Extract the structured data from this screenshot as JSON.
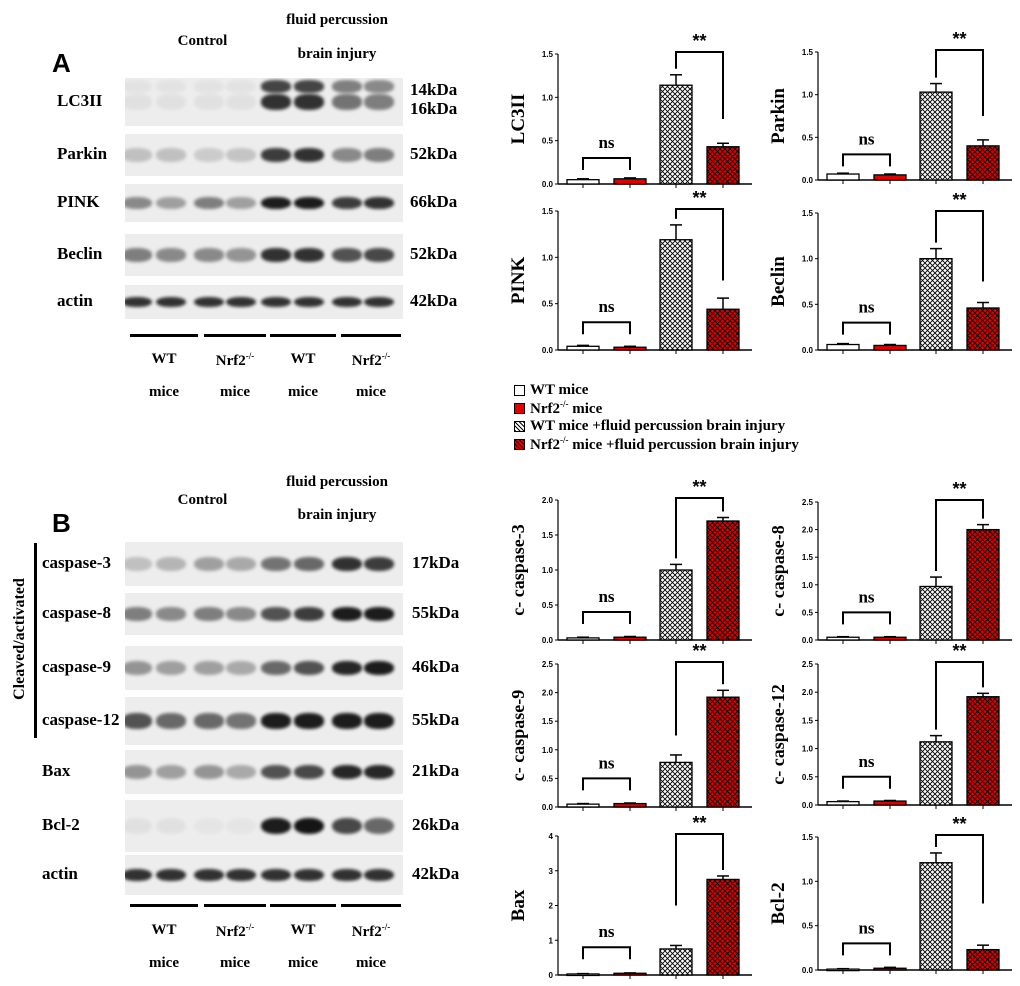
{
  "panel_a": {
    "letter": "A",
    "header_control": "Control",
    "header_fpbi_1": "fluid percussion",
    "header_fpbi_2": "brain injury",
    "rows": [
      {
        "label": "LC3II",
        "kda": "14kDa",
        "kda2": "16kDa",
        "intensity": [
          0.05,
          0.05,
          0.05,
          0.05,
          0.85,
          0.85,
          0.55,
          0.5
        ]
      },
      {
        "label": "Parkin",
        "kda": "52kDa",
        "intensity": [
          0.2,
          0.2,
          0.15,
          0.18,
          0.8,
          0.85,
          0.45,
          0.5
        ]
      },
      {
        "label": "PINK",
        "kda": "66kDa",
        "intensity": [
          0.45,
          0.35,
          0.5,
          0.35,
          0.95,
          0.95,
          0.8,
          0.85
        ]
      },
      {
        "label": "Beclin",
        "kda": "52kDa",
        "intensity": [
          0.5,
          0.45,
          0.45,
          0.4,
          0.85,
          0.85,
          0.7,
          0.75
        ]
      },
      {
        "label": "actin",
        "kda": "42kDa",
        "intensity": [
          0.85,
          0.85,
          0.85,
          0.85,
          0.85,
          0.85,
          0.85,
          0.85
        ]
      }
    ],
    "groups": [
      {
        "line1": "WT",
        "sup": "",
        "line2": "mice"
      },
      {
        "line1": "Nrf2",
        "sup": "-/-",
        "line2": "mice"
      },
      {
        "line1": "WT",
        "sup": "",
        "line2": "mice"
      },
      {
        "line1": "Nrf2",
        "sup": "-/-",
        "line2": "mice"
      }
    ]
  },
  "panel_b": {
    "letter": "B",
    "header_control": "Control",
    "header_fpbi_1": "fluid percussion",
    "header_fpbi_2": "brain injury",
    "bracket_label": "Cleaved/activated",
    "rows": [
      {
        "label": "caspase-3",
        "kda": "17kDa",
        "intensity": [
          0.2,
          0.25,
          0.35,
          0.3,
          0.55,
          0.6,
          0.85,
          0.8
        ]
      },
      {
        "label": "caspase-8",
        "kda": "55kDa",
        "intensity": [
          0.5,
          0.45,
          0.5,
          0.45,
          0.7,
          0.8,
          0.95,
          0.95
        ]
      },
      {
        "label": "caspase-9",
        "kda": "46kDa",
        "intensity": [
          0.4,
          0.35,
          0.35,
          0.3,
          0.6,
          0.7,
          0.9,
          0.95
        ]
      },
      {
        "label": "caspase-12",
        "kda": "55kDa",
        "intensity": [
          0.7,
          0.6,
          0.6,
          0.55,
          0.95,
          0.95,
          0.95,
          0.95
        ]
      },
      {
        "label": "Bax",
        "kda": "21kDa",
        "intensity": [
          0.4,
          0.35,
          0.4,
          0.3,
          0.7,
          0.75,
          0.9,
          0.9
        ]
      },
      {
        "label": "Bcl-2",
        "kda": "26kDa",
        "intensity": [
          0.05,
          0.05,
          0.03,
          0.03,
          0.95,
          0.98,
          0.75,
          0.6
        ]
      },
      {
        "label": "actin",
        "kda": "42kDa",
        "intensity": [
          0.85,
          0.85,
          0.85,
          0.85,
          0.85,
          0.85,
          0.85,
          0.85
        ]
      }
    ],
    "groups": [
      {
        "line1": "WT",
        "sup": "",
        "line2": "mice"
      },
      {
        "line1": "Nrf2",
        "sup": "-/-",
        "line2": "mice"
      },
      {
        "line1": "WT",
        "sup": "",
        "line2": "mice"
      },
      {
        "line1": "Nrf2",
        "sup": "-/-",
        "line2": "mice"
      }
    ]
  },
  "legend": [
    {
      "pre": "WT mice",
      "sup": "",
      "post": "",
      "style": "white"
    },
    {
      "pre": "Nrf2",
      "sup": "-/-",
      "post": " mice",
      "style": "red"
    },
    {
      "pre": "WT mice  +fluid percussion brain injury",
      "sup": "",
      "post": "",
      "style": "hatch"
    },
    {
      "pre": "Nrf2",
      "sup": "-/-",
      "post": " mice +fluid percussion brain injury",
      "style": "redhatch"
    }
  ],
  "colors": {
    "red": "#e00000",
    "black": "#000000"
  },
  "chart_data": [
    {
      "type": "bar",
      "ylabel": "LC3II",
      "ylim": [
        0,
        1.5
      ],
      "yticks": [
        "0.0",
        "0.5",
        "1.0",
        "1.5"
      ],
      "values": [
        0.05,
        0.06,
        1.14,
        0.43
      ],
      "errors": [
        0.01,
        0.01,
        0.12,
        0.04
      ],
      "sig_left": "ns",
      "sig_right": "**"
    },
    {
      "type": "bar",
      "ylabel": "Parkin",
      "ylim": [
        0,
        1.5
      ],
      "yticks": [
        "0.0",
        "0.5",
        "1.0",
        "1.5"
      ],
      "values": [
        0.07,
        0.06,
        1.03,
        0.4
      ],
      "errors": [
        0.01,
        0.01,
        0.1,
        0.07
      ],
      "sig_left": "ns",
      "sig_right": "**"
    },
    {
      "type": "bar",
      "ylabel": "PINK",
      "ylim": [
        0,
        1.5
      ],
      "yticks": [
        "0.0",
        "0.5",
        "1.0",
        "1.5"
      ],
      "values": [
        0.04,
        0.03,
        1.19,
        0.44
      ],
      "errors": [
        0.01,
        0.01,
        0.16,
        0.12
      ],
      "sig_left": "ns",
      "sig_right": "**"
    },
    {
      "type": "bar",
      "ylabel": "Beclin",
      "ylim": [
        0,
        1.5
      ],
      "yticks": [
        "0.0",
        "0.5",
        "1.0",
        "1.5"
      ],
      "values": [
        0.06,
        0.05,
        1.0,
        0.46
      ],
      "errors": [
        0.01,
        0.01,
        0.11,
        0.06
      ],
      "sig_left": "ns",
      "sig_right": "**"
    },
    {
      "type": "bar",
      "ylabel": "c- caspase-3",
      "ylim": [
        0,
        2.0
      ],
      "yticks": [
        "0.0",
        "0.5",
        "1.0",
        "1.5",
        "2.0"
      ],
      "values": [
        0.03,
        0.04,
        1.0,
        1.7
      ],
      "errors": [
        0.01,
        0.01,
        0.08,
        0.05
      ],
      "sig_left": "ns",
      "sig_right": "**"
    },
    {
      "type": "bar",
      "ylabel": "c- caspase-8",
      "ylim": [
        0,
        2.5
      ],
      "yticks": [
        "0.0",
        "0.5",
        "1.0",
        "1.5",
        "2.0",
        "2.5"
      ],
      "values": [
        0.05,
        0.05,
        0.97,
        2.0
      ],
      "errors": [
        0.01,
        0.01,
        0.17,
        0.09
      ],
      "sig_left": "ns",
      "sig_right": "**"
    },
    {
      "type": "bar",
      "ylabel": "c- caspase-9",
      "ylim": [
        0,
        2.5
      ],
      "yticks": [
        "0.0",
        "0.5",
        "1.0",
        "1.5",
        "2.0",
        "2.5"
      ],
      "values": [
        0.05,
        0.06,
        0.78,
        1.92
      ],
      "errors": [
        0.01,
        0.01,
        0.13,
        0.12
      ],
      "sig_left": "ns",
      "sig_right": "**"
    },
    {
      "type": "bar",
      "ylabel": "c- caspase-12",
      "ylim": [
        0,
        2.5
      ],
      "yticks": [
        "0.0",
        "0.5",
        "1.0",
        "1.5",
        "2.0",
        "2.5"
      ],
      "values": [
        0.06,
        0.07,
        1.12,
        1.92
      ],
      "errors": [
        0.01,
        0.01,
        0.11,
        0.06
      ],
      "sig_left": "ns",
      "sig_right": "**"
    },
    {
      "type": "bar",
      "ylabel": "Bax",
      "ylim": [
        0,
        4
      ],
      "yticks": [
        "0",
        "1",
        "2",
        "3",
        "4"
      ],
      "values": [
        0.03,
        0.05,
        0.75,
        2.75
      ],
      "errors": [
        0.01,
        0.01,
        0.1,
        0.1
      ],
      "sig_left": "ns",
      "sig_right": "**"
    },
    {
      "type": "bar",
      "ylabel": "Bcl-2",
      "ylim": [
        0,
        1.5
      ],
      "yticks": [
        "0.0",
        "0.5",
        "1.0",
        "1.5"
      ],
      "values": [
        0.01,
        0.02,
        1.21,
        0.23
      ],
      "errors": [
        0.005,
        0.01,
        0.11,
        0.05
      ],
      "sig_left": "ns",
      "sig_right": "**"
    }
  ]
}
